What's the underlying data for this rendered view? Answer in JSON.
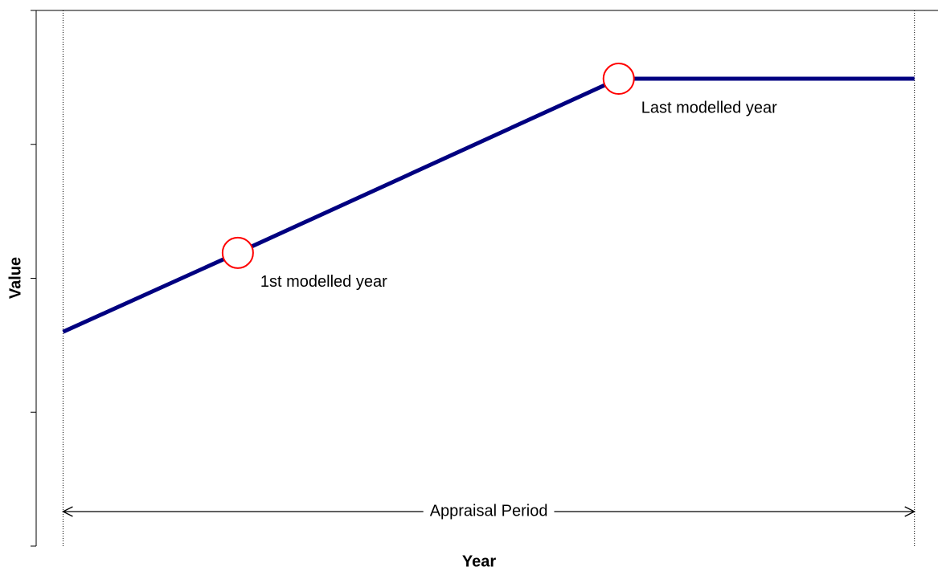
{
  "chart_data": {
    "type": "line",
    "x_label": "Year",
    "y_label": "Value",
    "xlim": [
      0,
      10
    ],
    "ylim": [
      0,
      4
    ],
    "yticks": [
      0,
      1,
      2,
      3,
      4
    ],
    "series": [
      {
        "color": "#000080",
        "x": [
          0.3,
          2.25,
          6.5,
          9.8
        ],
        "values": [
          1.6,
          2.19,
          3.49,
          3.49
        ]
      },
      {
        "color": "#ff0000",
        "x": [
          2.25,
          6.5
        ],
        "values": [
          2.19,
          3.49
        ]
      }
    ],
    "annotations": [
      "1st modelled year",
      "Last modelled year"
    ],
    "appraisal_period": {
      "label": "Appraisal Period",
      "x": [
        0.3,
        9.8
      ]
    }
  }
}
